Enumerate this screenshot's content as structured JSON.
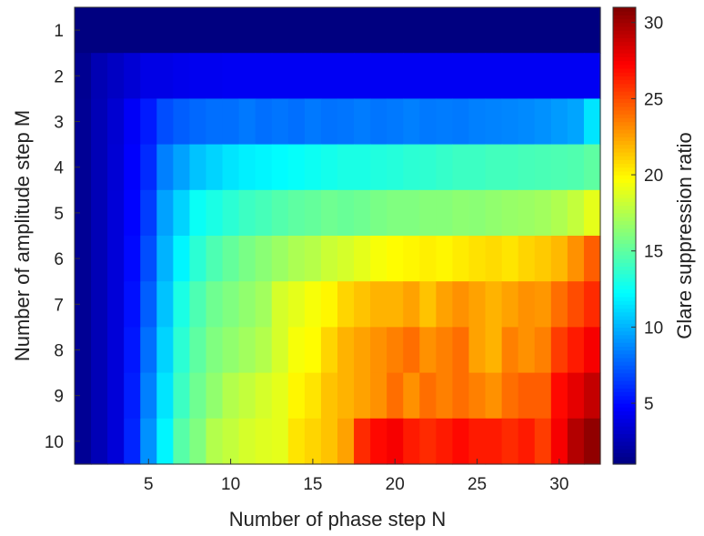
{
  "chart_data": {
    "type": "heatmap",
    "xlabel": "Number of phase step N",
    "ylabel": "Number of amplitude step M",
    "colorbar_label": "Glare suppression ratio",
    "colormap": "jet",
    "x": [
      1,
      2,
      3,
      4,
      5,
      6,
      7,
      8,
      9,
      10,
      11,
      12,
      13,
      14,
      15,
      16,
      17,
      18,
      19,
      20,
      21,
      22,
      23,
      24,
      25,
      26,
      27,
      28,
      29,
      30,
      31,
      32
    ],
    "y": [
      1,
      2,
      3,
      4,
      5,
      6,
      7,
      8,
      9,
      10
    ],
    "xlim": [
      0.5,
      32.5
    ],
    "ylim": [
      0.5,
      10.5
    ],
    "x_ticks": [
      5,
      10,
      15,
      20,
      25,
      30
    ],
    "y_ticks": [
      1,
      2,
      3,
      4,
      5,
      6,
      7,
      8,
      9,
      10
    ],
    "color_range": [
      1,
      31
    ],
    "colorbar_ticks": [
      5,
      10,
      15,
      20,
      25,
      30
    ],
    "z": [
      [
        1.0,
        1.0,
        1.0,
        1.0,
        1.0,
        1.0,
        1.0,
        1.0,
        1.0,
        1.0,
        1.0,
        1.0,
        1.0,
        1.0,
        1.0,
        1.0,
        1.0,
        1.0,
        1.0,
        1.0,
        1.0,
        1.0,
        1.0,
        1.0,
        1.0,
        1.0,
        1.0,
        1.0,
        1.0,
        1.0,
        1.0,
        1.0
      ],
      [
        1.5,
        2.5,
        3.0,
        3.5,
        4.0,
        4.0,
        4.2,
        4.3,
        4.3,
        4.4,
        4.4,
        4.4,
        4.4,
        4.4,
        4.4,
        4.4,
        4.4,
        4.4,
        4.4,
        4.4,
        4.4,
        4.4,
        4.4,
        4.4,
        4.4,
        4.4,
        4.4,
        4.4,
        4.4,
        4.4,
        4.4,
        4.4
      ],
      [
        1.6,
        2.6,
        3.4,
        4.5,
        5.5,
        7.0,
        7.5,
        7.8,
        8.0,
        8.0,
        8.3,
        8.0,
        8.2,
        8.0,
        8.3,
        8.1,
        8.2,
        8.4,
        8.2,
        8.3,
        8.5,
        8.3,
        8.4,
        8.3,
        8.5,
        8.6,
        8.7,
        8.8,
        9.0,
        9.3,
        9.6,
        11.5
      ],
      [
        1.6,
        2.6,
        3.5,
        4.7,
        6.0,
        8.5,
        9.5,
        10.5,
        11.0,
        11.5,
        11.8,
        12.0,
        12.2,
        12.4,
        12.6,
        12.8,
        13.0,
        13.0,
        13.2,
        13.3,
        13.5,
        13.6,
        13.8,
        14.0,
        14.0,
        14.2,
        14.2,
        14.3,
        14.4,
        14.5,
        14.6,
        15.0
      ],
      [
        1.6,
        2.6,
        3.6,
        4.8,
        6.5,
        9.5,
        11.0,
        12.5,
        13.0,
        13.5,
        14.0,
        14.3,
        14.7,
        15.0,
        15.2,
        15.5,
        15.3,
        15.5,
        15.8,
        16.0,
        16.0,
        16.2,
        16.2,
        16.4,
        16.3,
        16.5,
        16.7,
        16.8,
        17.0,
        17.4,
        18.0,
        19.0
      ],
      [
        1.6,
        2.6,
        3.6,
        5.0,
        7.0,
        10.0,
        12.0,
        13.5,
        14.5,
        15.2,
        15.8,
        16.3,
        16.8,
        17.3,
        17.6,
        18.2,
        18.5,
        19.0,
        19.5,
        19.8,
        20.0,
        20.2,
        20.0,
        20.3,
        20.6,
        20.8,
        20.5,
        21.0,
        21.3,
        21.8,
        23.0,
        24.5
      ],
      [
        1.6,
        2.6,
        3.6,
        5.2,
        7.5,
        10.5,
        13.0,
        14.5,
        15.5,
        16.0,
        16.5,
        17.0,
        18.5,
        19.0,
        19.5,
        20.0,
        21.0,
        21.5,
        22.0,
        22.0,
        22.5,
        21.5,
        22.5,
        23.0,
        22.5,
        22.0,
        22.5,
        23.0,
        22.8,
        24.0,
        25.0,
        26.0
      ],
      [
        1.6,
        2.6,
        3.6,
        5.4,
        8.0,
        11.0,
        13.5,
        15.0,
        16.0,
        16.5,
        17.0,
        17.5,
        18.5,
        19.5,
        19.8,
        21.0,
        22.0,
        22.5,
        23.0,
        23.5,
        24.0,
        23.0,
        23.5,
        24.0,
        22.5,
        22.0,
        23.5,
        23.0,
        23.5,
        25.5,
        26.5,
        27.5
      ],
      [
        1.6,
        2.6,
        3.6,
        5.6,
        8.5,
        11.5,
        14.0,
        15.5,
        16.5,
        17.5,
        18.0,
        18.5,
        19.0,
        20.0,
        20.5,
        21.5,
        22.0,
        22.5,
        23.0,
        24.0,
        23.0,
        24.0,
        23.5,
        24.0,
        23.5,
        23.0,
        24.0,
        24.5,
        24.5,
        27.0,
        28.0,
        29.0
      ],
      [
        1.6,
        2.6,
        3.6,
        5.8,
        9.0,
        12.0,
        14.8,
        16.0,
        17.5,
        18.0,
        18.5,
        18.8,
        19.0,
        20.5,
        21.0,
        21.5,
        22.5,
        26.0,
        27.0,
        27.5,
        26.5,
        26.0,
        26.5,
        27.0,
        26.5,
        26.5,
        26.0,
        26.5,
        25.5,
        27.5,
        29.5,
        30.5
      ]
    ]
  }
}
